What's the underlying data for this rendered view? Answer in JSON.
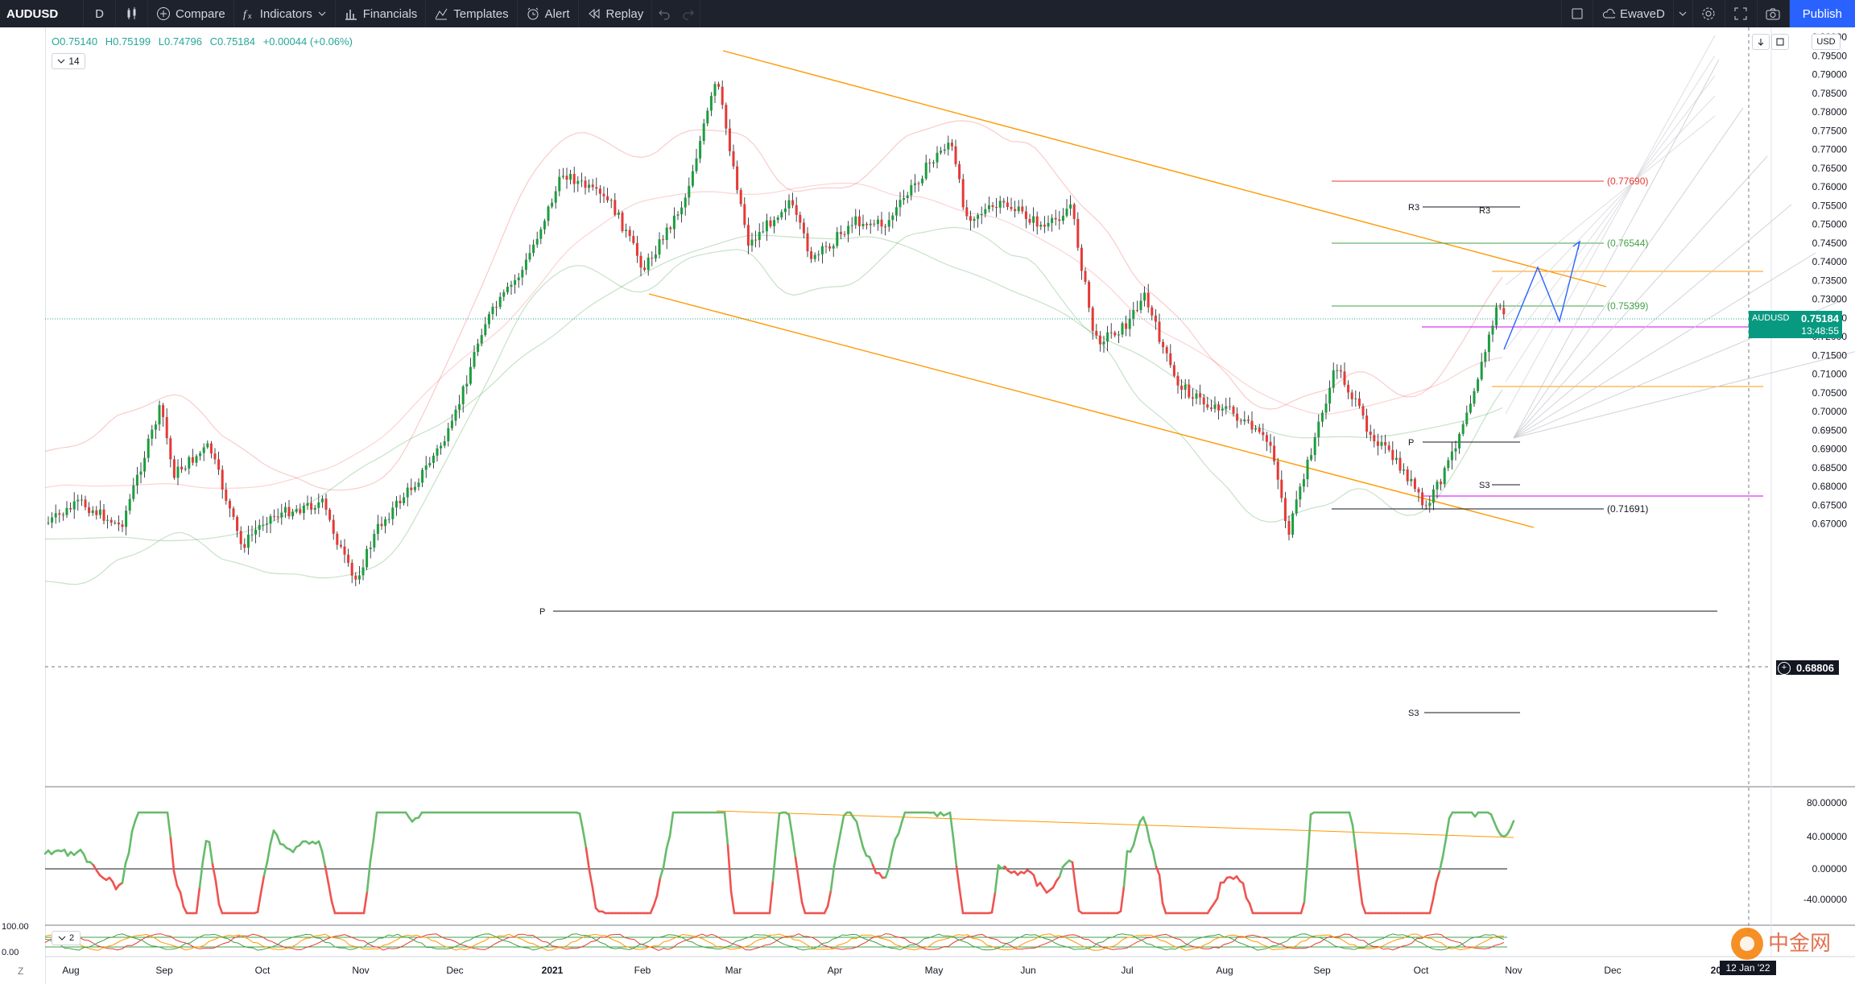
{
  "toolbar": {
    "symbol": "AUDUSD",
    "interval": "D",
    "compare": "Compare",
    "indicators": "Indicators",
    "financials": "Financials",
    "templates": "Templates",
    "alert": "Alert",
    "replay": "Replay",
    "layout_name": "EwaveD",
    "publish": "Publish"
  },
  "legend": {
    "open": "O0.75140",
    "high": "H0.75199",
    "low": "L0.74796",
    "close": "C0.75184",
    "change": "+0.00044 (+0.06%)",
    "indicator_count": "14",
    "lower_pane_count": "2"
  },
  "price_scale": {
    "currency": "USD",
    "labels": [
      "0.80000",
      "0.79500",
      "0.79000",
      "0.78500",
      "0.78000",
      "0.77500",
      "0.77000",
      "0.76500",
      "0.76000",
      "0.75500",
      "0.75000",
      "0.74500",
      "0.74000",
      "0.73500",
      "0.73000",
      "0.72500",
      "0.72000",
      "0.71500",
      "0.71000",
      "0.70500",
      "0.70000",
      "0.69500",
      "0.69000",
      "0.68500",
      "0.68000",
      "0.67500",
      "0.67000"
    ],
    "current_symbol": "AUDUSD",
    "current_price": "0.75184",
    "countdown": "13:48:55",
    "crosshair_price": "0.68806"
  },
  "osc_scale": {
    "labels": [
      "80.00000",
      "40.00000",
      "0.00000",
      "-40.00000"
    ]
  },
  "stoch_scale": {
    "labels": [
      "100.00",
      "0.00"
    ]
  },
  "time_axis": {
    "labels": [
      "Aug",
      "Sep",
      "Oct",
      "Nov",
      "Dec",
      "2021",
      "Feb",
      "Mar",
      "Apr",
      "May",
      "Jun",
      "Jul",
      "Aug",
      "Sep",
      "Oct",
      "Nov",
      "Dec",
      "2022"
    ],
    "crosshair_date": "12 Jan '22"
  },
  "annotations": {
    "fib_0769": "(0.77690)",
    "fib_07654": "(0.76544)",
    "fib_07539": "(0.75399)",
    "fib_07169": "(0.71691)",
    "r3_left": "R3",
    "r3_right": "R3",
    "p_small": "P",
    "s3_small": "S3",
    "p_big": "P",
    "s3_big": "S3"
  },
  "zoom_label": "Z",
  "watermark": "中金网",
  "colors": {
    "up": "#26a69a",
    "down": "#ef5350",
    "candle_up": "#1b9e3e",
    "candle_down": "#e53935",
    "channel": "#ff9800",
    "projection": "#2962ff",
    "toolbar_bg": "#1e222d",
    "publish_bg": "#2962ff"
  }
}
